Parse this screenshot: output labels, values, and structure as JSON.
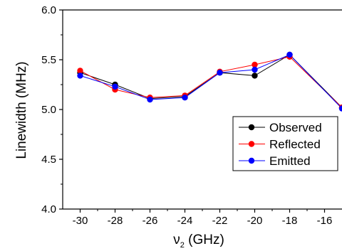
{
  "chart_data": {
    "type": "line",
    "title": "",
    "xlabel_symbol": "ν",
    "xlabel_subscript": "2",
    "xlabel_rest": " (GHz)",
    "ylabel": "Linewidth (MHz)",
    "xlim": [
      -31,
      -15
    ],
    "ylim": [
      4.0,
      6.0
    ],
    "xticks": [
      -30,
      -28,
      -26,
      -24,
      -22,
      -20,
      -18,
      -16
    ],
    "xtick_labels": [
      "-30",
      "-28",
      "-26",
      "-24",
      "-22",
      "-20",
      "-18",
      "-16"
    ],
    "yticks": [
      4.0,
      4.5,
      5.0,
      5.5,
      6.0
    ],
    "ytick_labels": [
      "4.0",
      "4.5",
      "5.0",
      "5.5",
      "6.0"
    ],
    "grid": false,
    "legend_position": "middle-right",
    "x": [
      -30,
      -28,
      -26,
      -24,
      -22,
      -20,
      -18,
      -15
    ],
    "series": [
      {
        "name": "Observed",
        "color": "#000000",
        "values": [
          5.37,
          5.25,
          5.11,
          5.13,
          5.37,
          5.34,
          5.55,
          5.02
        ]
      },
      {
        "name": "Reflected",
        "color": "#ff0000",
        "values": [
          5.39,
          5.2,
          5.12,
          5.14,
          5.38,
          5.45,
          5.53,
          5.02
        ]
      },
      {
        "name": "Emitted",
        "color": "#0000ff",
        "values": [
          5.34,
          5.23,
          5.1,
          5.12,
          5.37,
          5.4,
          5.55,
          5.01
        ]
      }
    ]
  }
}
